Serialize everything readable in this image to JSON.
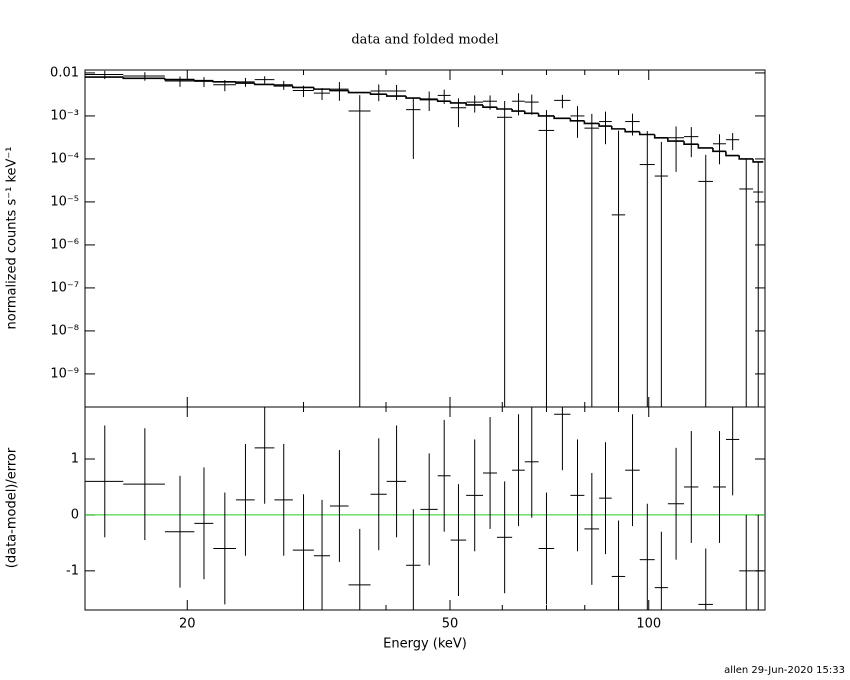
{
  "chart_data": [
    {
      "type": "errorbar",
      "title": "data and folded model",
      "ylabel": "normalized counts s⁻¹ keV⁻¹",
      "xlog": true,
      "ylog": true,
      "xlim": [
        14,
        150
      ],
      "ylim": [
        1.7e-10,
        0.0117
      ],
      "xticks": [
        20,
        50,
        100
      ],
      "xminorticks": [
        30,
        40,
        60,
        70,
        80,
        90
      ],
      "yticks": [
        {
          "value": 1e-09,
          "label": "10⁻⁹"
        },
        {
          "value": 1e-08,
          "label": "10⁻⁸"
        },
        {
          "value": 1e-07,
          "label": "10⁻⁷"
        },
        {
          "value": 1e-06,
          "label": "10⁻⁶"
        },
        {
          "value": 1e-05,
          "label": "10⁻⁵"
        },
        {
          "value": 0.0001,
          "label": "10⁻⁴"
        },
        {
          "value": 0.001,
          "label": "10⁻³"
        },
        0.01
      ],
      "color": "#000000",
      "model_color": "#000000",
      "x": [
        15,
        17.25,
        19.5,
        21.2,
        22.8,
        24.5,
        26.2,
        28,
        30,
        32,
        34,
        36.5,
        39,
        41.5,
        44,
        46.5,
        49,
        51.5,
        54.5,
        57.5,
        60.5,
        63.5,
        66.5,
        70,
        74,
        78,
        82,
        86,
        90,
        94.5,
        99.5,
        104.5,
        110,
        116,
        122,
        128,
        134,
        140.5,
        146.5
      ],
      "x_err": [
        1,
        1.25,
        1,
        0.7,
        0.9,
        0.8,
        0.9,
        0.9,
        1.1,
        0.9,
        1.1,
        1.4,
        1.1,
        1.4,
        1.1,
        1.4,
        1.1,
        1.4,
        1.6,
        1.4,
        1.6,
        1.4,
        1.6,
        1.9,
        2.1,
        1.9,
        2.1,
        1.9,
        2.1,
        2.4,
        2.6,
        2.4,
        3.1,
        2.9,
        3.1,
        2.9,
        3.1,
        3.4,
        2.6
      ],
      "values": [
        0.0092,
        0.0085,
        0.0065,
        0.00635,
        0.0053,
        0.0062,
        0.007,
        0.0053,
        0.0039,
        0.0034,
        0.0042,
        0.0013,
        0.0038,
        0.0038,
        0.0014,
        0.0025,
        0.003,
        0.00155,
        0.0021,
        0.0022,
        0.00093,
        0.0022,
        0.0021,
        0.00046,
        0.0023,
        0.001,
        0.00052,
        0.00074,
        5e-06,
        0.00074,
        7.4e-05,
        4e-05,
        0.00031,
        0.00033,
        3e-05,
        0.000225,
        0.00028,
        2e-05,
        1.7e-05
      ],
      "errors": [
        0.002,
        0.0019,
        0.00175,
        0.00165,
        0.00155,
        0.00145,
        0.00135,
        0.00125,
        0.00115,
        0.00105,
        0.00195,
        0.00175,
        0.0016,
        0.00145,
        0.0013,
        0.0012,
        0.0011,
        0.001,
        0.0009,
        0.0008,
        0.0013,
        0.00117,
        0.00104,
        0.0009,
        0.00079,
        0.00069,
        0.0006,
        0.00052,
        0.00045,
        0.00039,
        0.00037,
        0.00021,
        0.00026,
        0.00022,
        9.4e-05,
        0.00015,
        0.00012,
        8e-05,
        6.8e-05
      ],
      "model": [
        0.008,
        0.0075,
        0.007,
        0.0066,
        0.0062,
        0.0058,
        0.0054,
        0.005,
        0.0046,
        0.0042,
        0.0039,
        0.0035,
        0.0032,
        0.0029,
        0.0026,
        0.0024,
        0.0022,
        0.002,
        0.0018,
        0.0016,
        0.00145,
        0.0013,
        0.00115,
        0.001,
        0.00088,
        0.00077,
        0.00067,
        0.00058,
        0.0005,
        0.00043,
        0.00037,
        0.00031,
        0.00026,
        0.00022,
        0.00018,
        0.00015,
        0.00012,
        0.0001,
        8.5e-05
      ]
    },
    {
      "type": "errorbar",
      "ylabel": "(data-model)/error",
      "xlabel": "Energy (keV)",
      "xlog": true,
      "xlim": [
        14,
        150
      ],
      "ylim": [
        -1.7,
        1.93
      ],
      "xticks": [
        20,
        50,
        100
      ],
      "xminorticks": [
        30,
        40,
        60,
        70,
        80,
        90
      ],
      "yticks": [
        -1,
        0,
        1
      ],
      "color": "#000000",
      "zero_line": {
        "value": 0,
        "color": "#22cc22"
      },
      "x": [
        15,
        17.25,
        19.5,
        21.2,
        22.8,
        24.5,
        26.2,
        28,
        30,
        32,
        34,
        36.5,
        39,
        41.5,
        44,
        46.5,
        49,
        51.5,
        54.5,
        57.5,
        60.5,
        63.5,
        66.5,
        70,
        74,
        78,
        82,
        86,
        90,
        94.5,
        99.5,
        104.5,
        110,
        116,
        122,
        128,
        134,
        140.5,
        146.5
      ],
      "x_err": [
        1,
        1.25,
        1,
        0.7,
        0.9,
        0.8,
        0.9,
        0.9,
        1.1,
        0.9,
        1.1,
        1.4,
        1.1,
        1.4,
        1.1,
        1.4,
        1.1,
        1.4,
        1.6,
        1.4,
        1.6,
        1.4,
        1.6,
        1.9,
        2.1,
        1.9,
        2.1,
        1.9,
        2.1,
        2.4,
        2.6,
        2.4,
        3.1,
        2.9,
        3.1,
        2.9,
        3.1,
        3.4,
        2.6
      ],
      "values": [
        0.6,
        0.55,
        -0.3,
        -0.15,
        -0.6,
        0.27,
        1.2,
        0.27,
        -0.63,
        -0.73,
        0.16,
        -1.25,
        0.37,
        0.6,
        -0.9,
        0.1,
        0.7,
        -0.45,
        0.35,
        0.75,
        -0.4,
        0.8,
        0.95,
        -0.6,
        1.8,
        0.35,
        -0.25,
        0.3,
        -1.1,
        0.8,
        -0.8,
        -1.3,
        0.2,
        0.5,
        -1.6,
        0.5,
        1.35,
        -1,
        -1
      ],
      "errors": [
        1,
        1,
        1,
        1,
        1,
        1,
        1,
        1,
        1,
        1,
        1,
        1,
        1,
        1,
        1,
        1,
        1,
        1,
        1,
        1,
        1,
        1,
        1,
        1,
        1,
        1,
        1,
        1,
        1,
        1,
        1,
        1,
        1,
        1,
        1,
        1,
        1,
        1,
        1
      ]
    }
  ],
  "footer": "allen 29-Jun-2020 15:33"
}
